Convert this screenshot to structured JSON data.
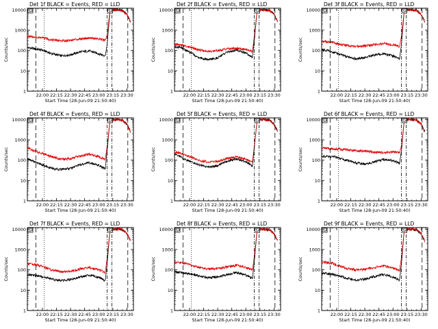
{
  "chart_data": {
    "type": "line",
    "layout": "3x3",
    "x_tick_labels": [
      "22:00",
      "22:15",
      "22:30",
      "22:45",
      "23:00",
      "23:15",
      "23:30"
    ],
    "x_tick_minutes": [
      0,
      15,
      30,
      45,
      60,
      75,
      90
    ],
    "x_range_minutes": [
      -16,
      97
    ],
    "ylabel": "Counts/sec",
    "xlabel": "Start Time (28-Jun-09 21:50:40)",
    "y_scale": "log",
    "ylim": [
      1,
      12000
    ],
    "y_tick_labels": [
      "1",
      "10",
      "100",
      "1000",
      "10000"
    ],
    "y_tick_values": [
      1,
      10,
      100,
      1000,
      10000
    ],
    "colors": {
      "events": "#000000",
      "lld": "#e00000",
      "frame": "#000000"
    },
    "vlines": [
      {
        "style": "long-dash",
        "minute": -7
      },
      {
        "style": "dotted",
        "minute": 2
      },
      {
        "style": "dash-dot",
        "minute": 69
      },
      {
        "style": "dash-dot",
        "minute": 74
      },
      {
        "style": "long-dash",
        "minute": 91
      }
    ],
    "markers": [
      {
        "label": "SA",
        "minute": -16
      },
      {
        "label": "SA",
        "minute": 69
      }
    ],
    "panels": [
      {
        "title": "Det 1f BLACK = Events, RED = LLD",
        "series": [
          {
            "x": [
              -16,
              -12,
              -8,
              0,
              10,
              20,
              30,
              40,
              50,
              60,
              67,
              69,
              72,
              75,
              80,
              85,
              90,
              94
            ],
            "y": [
              140,
              130,
              120,
              105,
              70,
              55,
              62,
              85,
              95,
              70,
              55,
              200,
              8000,
              10000,
              10000,
              9500,
              6000,
              2500
            ]
          },
          {
            "x": [
              -16,
              -12,
              -8,
              0,
              10,
              20,
              30,
              40,
              50,
              60,
              67,
              69,
              72,
              75,
              80,
              85,
              90,
              94
            ],
            "y": [
              500,
              480,
              450,
              420,
              340,
              300,
              320,
              380,
              420,
              370,
              310,
              600,
              9000,
              10000,
              10000,
              9500,
              6000,
              2500
            ]
          }
        ]
      },
      {
        "title": "Det 2f BLACK = Events, RED = LLD",
        "series": [
          {
            "x": [
              -16,
              -10,
              -5,
              0,
              10,
              20,
              30,
              40,
              50,
              60,
              67,
              69,
              72,
              75,
              80,
              85,
              90,
              94
            ],
            "y": [
              160,
              140,
              110,
              85,
              45,
              35,
              45,
              80,
              110,
              75,
              45,
              300,
              9000,
              10000,
              10000,
              9500,
              6000,
              2500
            ]
          },
          {
            "x": [
              -16,
              -10,
              -5,
              0,
              10,
              20,
              30,
              40,
              50,
              60,
              67,
              69,
              72,
              75,
              80,
              85,
              90,
              94
            ],
            "y": [
              200,
              190,
              170,
              150,
              110,
              90,
              100,
              120,
              130,
              110,
              90,
              500,
              9000,
              10000,
              10000,
              9500,
              6000,
              2500
            ]
          }
        ]
      },
      {
        "title": "Det 3f BLACK = Events, RED = LLD",
        "series": [
          {
            "x": [
              -16,
              -10,
              -5,
              0,
              10,
              20,
              30,
              40,
              50,
              60,
              67,
              69,
              72,
              75,
              80,
              85,
              90,
              94
            ],
            "y": [
              110,
              100,
              85,
              75,
              50,
              40,
              45,
              60,
              70,
              55,
              40,
              200,
              9000,
              10000,
              10000,
              9500,
              6000,
              2500
            ]
          },
          {
            "x": [
              -16,
              -10,
              -5,
              0,
              10,
              20,
              30,
              40,
              50,
              60,
              67,
              69,
              72,
              75,
              80,
              85,
              90,
              94
            ],
            "y": [
              280,
              270,
              250,
              220,
              180,
              160,
              170,
              200,
              220,
              190,
              160,
              500,
              9000,
              10000,
              10000,
              9500,
              6000,
              2500
            ]
          }
        ]
      },
      {
        "title": "Det 4f BLACK = Events, RED = LLD",
        "series": [
          {
            "x": [
              -16,
              -10,
              -5,
              0,
              10,
              20,
              30,
              40,
              50,
              60,
              67,
              69,
              72,
              75,
              80,
              85,
              90,
              94
            ],
            "y": [
              120,
              90,
              70,
              60,
              40,
              35,
              40,
              60,
              75,
              55,
              38,
              300,
              9000,
              10000,
              10000,
              9500,
              6000,
              2500
            ]
          },
          {
            "x": [
              -16,
              -10,
              -5,
              0,
              10,
              20,
              30,
              40,
              50,
              60,
              67,
              69,
              72,
              75,
              80,
              85,
              90,
              94
            ],
            "y": [
              400,
              300,
              250,
              220,
              150,
              110,
              120,
              160,
              200,
              150,
              110,
              500,
              9000,
              10000,
              10000,
              9500,
              6000,
              2500
            ]
          }
        ]
      },
      {
        "title": "Det 5f BLACK = Events, RED = LLD",
        "series": [
          {
            "x": [
              -16,
              -10,
              -5,
              0,
              10,
              20,
              30,
              40,
              50,
              60,
              67,
              69,
              72,
              75,
              80,
              85,
              90,
              94
            ],
            "y": [
              200,
              150,
              110,
              90,
              60,
              45,
              55,
              90,
              120,
              85,
              50,
              400,
              9000,
              10000,
              10000,
              9500,
              6000,
              2500
            ]
          },
          {
            "x": [
              -16,
              -10,
              -5,
              0,
              10,
              20,
              30,
              40,
              50,
              60,
              67,
              69,
              72,
              75,
              80,
              85,
              90,
              94
            ],
            "y": [
              260,
              220,
              180,
              150,
              100,
              80,
              90,
              120,
              150,
              110,
              80,
              500,
              9000,
              10000,
              10000,
              9500,
              6000,
              2500
            ]
          }
        ]
      },
      {
        "title": "Det 6f BLACK = Events, RED = LLD",
        "series": [
          {
            "x": [
              -16,
              -10,
              -5,
              0,
              10,
              20,
              30,
              40,
              50,
              60,
              67,
              69,
              72,
              75,
              80,
              85,
              90,
              94
            ],
            "y": [
              150,
              160,
              150,
              140,
              100,
              75,
              65,
              80,
              110,
              95,
              70,
              300,
              9000,
              10000,
              10000,
              9500,
              6000,
              2500
            ]
          },
          {
            "x": [
              -16,
              -10,
              -5,
              0,
              10,
              20,
              30,
              40,
              50,
              60,
              67,
              69,
              72,
              75,
              80,
              85,
              90,
              94
            ],
            "y": [
              420,
              380,
              360,
              350,
              330,
              300,
              280,
              250,
              230,
              250,
              240,
              500,
              9000,
              10000,
              10000,
              9500,
              6000,
              2500
            ]
          }
        ]
      },
      {
        "title": "Det 7f BLACK = Events, RED = LLD",
        "series": [
          {
            "x": [
              -16,
              -10,
              -5,
              0,
              10,
              20,
              30,
              40,
              50,
              60,
              67,
              69,
              72,
              75,
              80,
              85,
              90,
              94
            ],
            "y": [
              60,
              55,
              50,
              45,
              35,
              30,
              33,
              45,
              55,
              42,
              30,
              200,
              9000,
              10000,
              10000,
              9500,
              6000,
              2500
            ]
          },
          {
            "x": [
              -16,
              -10,
              -5,
              0,
              10,
              20,
              30,
              40,
              50,
              60,
              67,
              69,
              72,
              75,
              80,
              85,
              90,
              94
            ],
            "y": [
              200,
              190,
              170,
              150,
              100,
              80,
              85,
              110,
              130,
              100,
              75,
              400,
              9000,
              10000,
              10000,
              9500,
              6000,
              2500
            ]
          }
        ]
      },
      {
        "title": "Det 8f BLACK = Events, RED = LLD",
        "series": [
          {
            "x": [
              -16,
              -10,
              -5,
              0,
              10,
              20,
              30,
              40,
              50,
              60,
              67,
              69,
              72,
              75,
              80,
              85,
              90,
              94
            ],
            "y": [
              80,
              75,
              70,
              65,
              50,
              40,
              45,
              60,
              75,
              55,
              38,
              250,
              9000,
              10000,
              10000,
              9500,
              6000,
              2500
            ]
          },
          {
            "x": [
              -16,
              -10,
              -5,
              0,
              10,
              20,
              30,
              40,
              50,
              60,
              67,
              69,
              72,
              75,
              80,
              85,
              90,
              94
            ],
            "y": [
              240,
              230,
              210,
              180,
              130,
              110,
              115,
              140,
              170,
              130,
              100,
              450,
              9000,
              10000,
              10000,
              9500,
              6000,
              2500
            ]
          }
        ]
      },
      {
        "title": "Det 9f BLACK = Events, RED = LLD",
        "series": [
          {
            "x": [
              -16,
              -10,
              -5,
              0,
              10,
              20,
              30,
              40,
              50,
              60,
              67,
              69,
              72,
              75,
              80,
              85,
              90,
              94
            ],
            "y": [
              70,
              65,
              60,
              55,
              40,
              32,
              35,
              48,
              60,
              45,
              32,
              200,
              9000,
              10000,
              10000,
              9500,
              6000,
              2500
            ]
          },
          {
            "x": [
              -16,
              -10,
              -5,
              0,
              10,
              20,
              30,
              40,
              50,
              60,
              67,
              69,
              72,
              75,
              80,
              85,
              90,
              94
            ],
            "y": [
              240,
              230,
              210,
              180,
              120,
              100,
              105,
              130,
              160,
              120,
              95,
              400,
              9000,
              10000,
              10000,
              9500,
              6000,
              2500
            ]
          }
        ]
      }
    ]
  }
}
